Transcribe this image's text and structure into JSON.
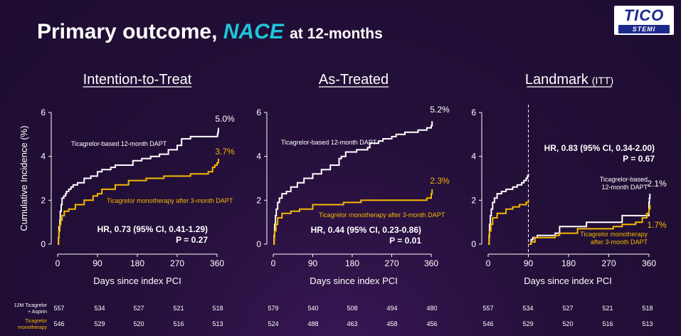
{
  "header": {
    "title_main": "Primary outcome,",
    "title_highlight": "NACE",
    "title_suffix": "at 12-months"
  },
  "logo": {
    "line1": "TICO",
    "line2": "STEMI"
  },
  "y_axis_label": "Cumulative Incidence (%)",
  "colors": {
    "dapt": "#ffffff",
    "mono": "#f5b800",
    "accent": "#1ec6d8",
    "background": "#24103a"
  },
  "chart_data": [
    {
      "type": "line",
      "title": "Intention-to-Treat",
      "title_suffix": "",
      "xlabel": "Days since index PCI",
      "ylabel": "Cumulative Incidence (%)",
      "xlim": [
        0,
        360
      ],
      "ylim": [
        0,
        6
      ],
      "xticks": [
        "0",
        "90",
        "180",
        "270",
        "360"
      ],
      "yticks": [
        "0",
        "2",
        "4",
        "6"
      ],
      "series": [
        {
          "name": "Ticagrelor-based 12-month DAPT",
          "end_label": "5.0%",
          "color": "#ffffff",
          "x": [
            0,
            2,
            3,
            5,
            6,
            8,
            10,
            14,
            18,
            20,
            25,
            30,
            35,
            45,
            60,
            75,
            90,
            100,
            120,
            130,
            160,
            170,
            190,
            210,
            230,
            250,
            270,
            280,
            300,
            360,
            361,
            362,
            363
          ],
          "y": [
            0,
            0.3,
            0.8,
            1.1,
            1.5,
            1.8,
            2.1,
            2.2,
            2.3,
            2.4,
            2.5,
            2.6,
            2.7,
            2.8,
            3.0,
            3.1,
            3.3,
            3.4,
            3.5,
            3.6,
            3.6,
            3.8,
            3.9,
            4.0,
            4.1,
            4.3,
            4.5,
            4.8,
            4.9,
            4.9,
            5.0,
            5.1,
            5.3
          ]
        },
        {
          "name": "Ticagrelor monotherapy after 3-month DAPT",
          "end_label": "3.7%",
          "color": "#f5b800",
          "x": [
            0,
            2,
            3,
            5,
            7,
            10,
            15,
            25,
            40,
            60,
            80,
            90,
            100,
            130,
            160,
            200,
            240,
            270,
            300,
            340,
            350,
            355,
            360,
            363
          ],
          "y": [
            0,
            0.3,
            0.6,
            0.9,
            1.1,
            1.3,
            1.5,
            1.6,
            1.8,
            2.0,
            2.2,
            2.3,
            2.5,
            2.7,
            2.9,
            3.0,
            3.1,
            3.1,
            3.2,
            3.3,
            3.5,
            3.6,
            3.7,
            3.9
          ]
        }
      ],
      "hr_text": "HR, 0.73 (95% CI, 0.41-1.29)",
      "p_text": "P = 0.27",
      "at_risk": {
        "dapt": [
          "557",
          "534",
          "527",
          "521",
          "518"
        ],
        "mono": [
          "546",
          "529",
          "520",
          "516",
          "513"
        ]
      }
    },
    {
      "type": "line",
      "title": "As-Treated",
      "title_suffix": "",
      "xlabel": "Days since index PCI",
      "ylabel": "",
      "xlim": [
        0,
        360
      ],
      "ylim": [
        0,
        6
      ],
      "xticks": [
        "0",
        "90",
        "180",
        "270",
        "360"
      ],
      "yticks": [
        "0",
        "2",
        "4",
        "6"
      ],
      "series": [
        {
          "name": "Ticagrelor-based 12-month DAPT",
          "end_label": "5.2%",
          "color": "#ffffff",
          "x": [
            0,
            2,
            3,
            5,
            7,
            10,
            14,
            20,
            30,
            40,
            55,
            70,
            90,
            110,
            130,
            150,
            155,
            165,
            190,
            215,
            220,
            240,
            250,
            270,
            280,
            300,
            330,
            350,
            360,
            362
          ],
          "y": [
            0,
            0.4,
            0.9,
            1.3,
            1.6,
            1.9,
            2.1,
            2.3,
            2.4,
            2.6,
            2.8,
            3.0,
            3.2,
            3.4,
            3.6,
            3.9,
            4.0,
            4.2,
            4.3,
            4.4,
            4.6,
            4.7,
            4.8,
            4.9,
            5.0,
            5.1,
            5.2,
            5.3,
            5.4,
            5.6
          ]
        },
        {
          "name": "Ticagrelor monotherapy after 3-month DAPT",
          "end_label": "2.3%",
          "color": "#f5b800",
          "x": [
            0,
            2,
            3,
            6,
            10,
            20,
            40,
            60,
            90,
            110,
            160,
            200,
            270,
            300,
            330,
            350,
            360,
            362
          ],
          "y": [
            0,
            0.3,
            0.6,
            0.9,
            1.2,
            1.4,
            1.5,
            1.6,
            1.8,
            1.8,
            1.9,
            2.0,
            2.0,
            2.0,
            2.0,
            2.1,
            2.3,
            2.5
          ]
        }
      ],
      "hr_text": "HR, 0.44 (95% CI, 0.23-0.86)",
      "p_text": "P = 0.01",
      "at_risk": {
        "dapt": [
          "579",
          "540",
          "508",
          "494",
          "480"
        ],
        "mono": [
          "524",
          "488",
          "463",
          "458",
          "456"
        ]
      }
    },
    {
      "type": "line",
      "title": "Landmark",
      "title_suffix": "(ITT)",
      "xlabel": "Days since index PCI",
      "ylabel": "",
      "xlim": [
        0,
        360
      ],
      "ylim": [
        0,
        6
      ],
      "xticks": [
        "0",
        "90",
        "180",
        "270",
        "360"
      ],
      "yticks": [
        "0",
        "2",
        "4",
        "6"
      ],
      "landmark_day": 90,
      "series": [
        {
          "name": "Ticagrelor-based 12-month DAPT",
          "end_label": "2.1%",
          "color": "#ffffff",
          "x": [
            0,
            2,
            3,
            5,
            7,
            10,
            14,
            20,
            30,
            40,
            55,
            65,
            75,
            80,
            85,
            88,
            90
          ],
          "y": [
            0,
            0.4,
            0.9,
            1.3,
            1.6,
            1.9,
            2.1,
            2.3,
            2.4,
            2.5,
            2.6,
            2.7,
            2.8,
            2.9,
            3.0,
            3.1,
            3.2
          ]
        },
        {
          "name": "Ticagrelor-based 12-month DAPT",
          "end_label": "",
          "color": "#ffffff",
          "x": [
            92,
            96,
            100,
            110,
            150,
            160,
            220,
            300,
            360,
            361,
            362
          ],
          "y": [
            0,
            0.2,
            0.3,
            0.4,
            0.5,
            0.8,
            1.0,
            1.3,
            1.9,
            2.1,
            2.3
          ]
        },
        {
          "name": "Ticagrelor monotherapy after 3-month DAPT",
          "end_label": "",
          "color": "#f5b800",
          "x": [
            0,
            2,
            3,
            6,
            10,
            20,
            40,
            55,
            70,
            85,
            90
          ],
          "y": [
            0,
            0.3,
            0.6,
            0.9,
            1.2,
            1.4,
            1.6,
            1.7,
            1.8,
            1.9,
            2.0
          ]
        },
        {
          "name": "Ticagrelor monotherapy after 3-month DAPT",
          "end_label": "1.7%",
          "color": "#f5b800",
          "x": [
            92,
            96,
            105,
            150,
            160,
            200,
            280,
            300,
            330,
            345,
            355,
            360,
            362
          ],
          "y": [
            0,
            0.1,
            0.3,
            0.4,
            0.5,
            0.7,
            0.8,
            0.9,
            1.0,
            1.2,
            1.4,
            1.6,
            1.8
          ]
        }
      ],
      "hr_text": "HR, 0.83 (95% CI, 0.34-2.00)",
      "p_text": "P = 0.67",
      "at_risk": {
        "dapt": [
          "557",
          "534",
          "527",
          "521",
          "518"
        ],
        "mono": [
          "546",
          "529",
          "520",
          "516",
          "513"
        ]
      }
    }
  ],
  "at_risk_labels": {
    "dapt_line1": "12M Ticagrelor",
    "dapt_line2": "+ Aspirin",
    "mono_line1": "Ticagrelor",
    "mono_line2": "monotherapy"
  }
}
